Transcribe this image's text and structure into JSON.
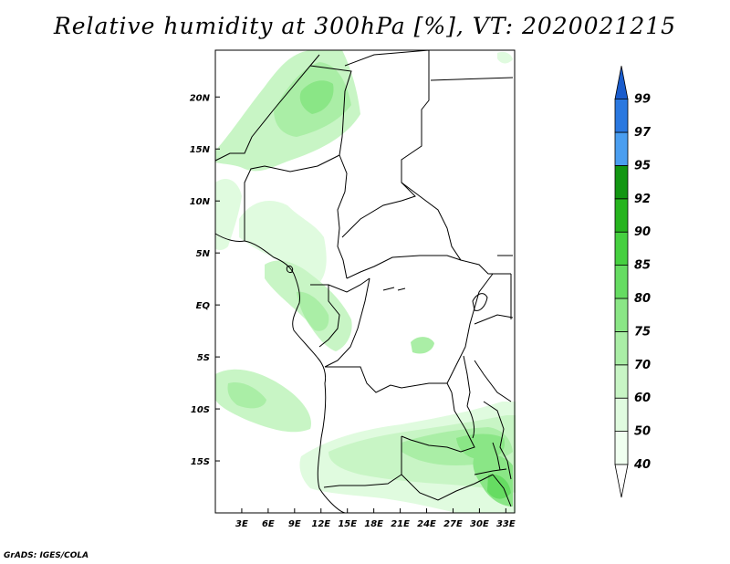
{
  "title": "Relative humidity at 300hPa [%], VT: 2020021215",
  "credit": "GrADS: IGES/COLA",
  "map": {
    "lon_range": [
      0,
      34
    ],
    "lat_range": [
      -20,
      24.5
    ],
    "lon_ticks": [
      {
        "value": 3,
        "label": "3E"
      },
      {
        "value": 6,
        "label": "6E"
      },
      {
        "value": 9,
        "label": "9E"
      },
      {
        "value": 12,
        "label": "12E"
      },
      {
        "value": 15,
        "label": "15E"
      },
      {
        "value": 18,
        "label": "18E"
      },
      {
        "value": 21,
        "label": "21E"
      },
      {
        "value": 24,
        "label": "24E"
      },
      {
        "value": 27,
        "label": "27E"
      },
      {
        "value": 30,
        "label": "30E"
      },
      {
        "value": 33,
        "label": "33E"
      }
    ],
    "lat_ticks": [
      {
        "value": 20,
        "label": "20N"
      },
      {
        "value": 15,
        "label": "15N"
      },
      {
        "value": 10,
        "label": "10N"
      },
      {
        "value": 5,
        "label": "5N"
      },
      {
        "value": 0,
        "label": "EQ"
      },
      {
        "value": -5,
        "label": "5S"
      },
      {
        "value": -10,
        "label": "10S"
      },
      {
        "value": -15,
        "label": "15S"
      }
    ]
  },
  "colorbar": {
    "levels": [
      {
        "label": "40",
        "color": "#f0fff0"
      },
      {
        "label": "50",
        "color": "#e0fbdf"
      },
      {
        "label": "60",
        "color": "#c8f5c5"
      },
      {
        "label": "70",
        "color": "#aaeea6"
      },
      {
        "label": "75",
        "color": "#8ae686"
      },
      {
        "label": "80",
        "color": "#66dc62"
      },
      {
        "label": "85",
        "color": "#46d040"
      },
      {
        "label": "90",
        "color": "#26b41e"
      },
      {
        "label": "92",
        "color": "#129612"
      },
      {
        "label": "95",
        "color": "#4a9ef0"
      },
      {
        "label": "97",
        "color": "#2a78e0"
      },
      {
        "label": "99",
        "color": "#1a5ccc"
      }
    ]
  }
}
